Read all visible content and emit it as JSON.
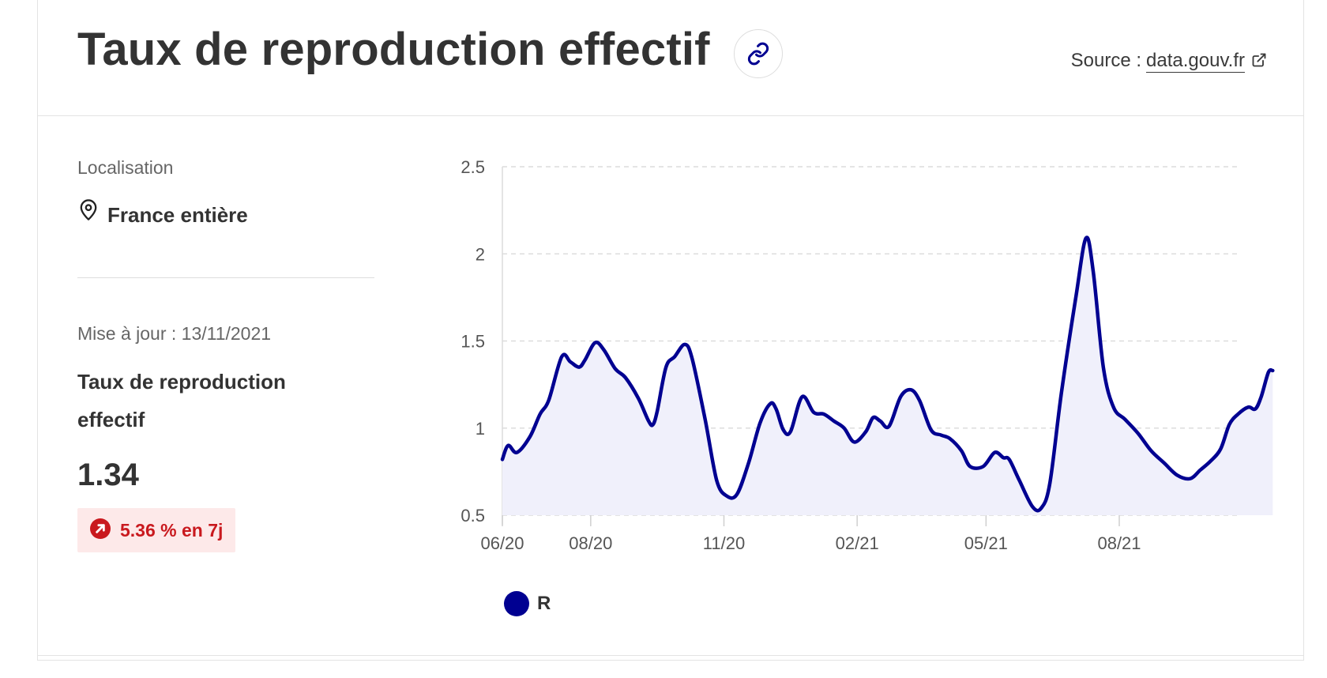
{
  "header": {
    "title": "Taux de reproduction effectif",
    "source_label": "Source :",
    "source_link": "data.gouv.fr"
  },
  "sidebar": {
    "location_label": "Localisation",
    "location_value": "France entière",
    "update_label": "Mise à jour : 13/11/2021",
    "indicator_label": "Taux de reproduction effectif",
    "indicator_value": "1.34",
    "trend_text": "5.36 % en 7j"
  },
  "colors": {
    "series": "#000091",
    "area": "#f0f0fb",
    "trend": "#c9191e",
    "trend_bg": "#fde9e9"
  },
  "icons": {
    "share": "link-icon",
    "external": "external-link-icon",
    "location": "map-pin-icon",
    "trend": "arrow-up-right-icon"
  },
  "chart_data": {
    "type": "area",
    "title": "",
    "xlabel": "",
    "ylabel": "",
    "ylim": [
      0.5,
      2.5
    ],
    "yticks": [
      "0.5",
      "1",
      "1.5",
      "2",
      "2.5"
    ],
    "xticks": [
      {
        "date": "2020-06-01",
        "label": "06/20"
      },
      {
        "date": "2020-08-01",
        "label": "08/20"
      },
      {
        "date": "2020-11-01",
        "label": "11/20"
      },
      {
        "date": "2021-02-01",
        "label": "02/21"
      },
      {
        "date": "2021-05-01",
        "label": "05/21"
      },
      {
        "date": "2021-08-01",
        "label": "08/21"
      }
    ],
    "grid": true,
    "legend": "bottom-left",
    "series": [
      {
        "name": "R",
        "points": [
          [
            "2020-06-01",
            0.82
          ],
          [
            "2020-06-05",
            0.9
          ],
          [
            "2020-06-11",
            0.86
          ],
          [
            "2020-06-20",
            0.95
          ],
          [
            "2020-06-27",
            1.08
          ],
          [
            "2020-07-03",
            1.16
          ],
          [
            "2020-07-12",
            1.41
          ],
          [
            "2020-07-18",
            1.38
          ],
          [
            "2020-07-24",
            1.35
          ],
          [
            "2020-07-28",
            1.39
          ],
          [
            "2020-08-04",
            1.49
          ],
          [
            "2020-08-10",
            1.45
          ],
          [
            "2020-08-18",
            1.34
          ],
          [
            "2020-08-25",
            1.29
          ],
          [
            "2020-09-03",
            1.17
          ],
          [
            "2020-09-10",
            1.04
          ],
          [
            "2020-09-13",
            1.02
          ],
          [
            "2020-09-16",
            1.1
          ],
          [
            "2020-09-22",
            1.35
          ],
          [
            "2020-09-28",
            1.41
          ],
          [
            "2020-10-05",
            1.48
          ],
          [
            "2020-10-10",
            1.4
          ],
          [
            "2020-10-19",
            1.05
          ],
          [
            "2020-10-27",
            0.7
          ],
          [
            "2020-11-03",
            0.61
          ],
          [
            "2020-11-10",
            0.62
          ],
          [
            "2020-11-18",
            0.8
          ],
          [
            "2020-11-26",
            1.03
          ],
          [
            "2020-12-03",
            1.14
          ],
          [
            "2020-12-07",
            1.11
          ],
          [
            "2020-12-12",
            0.99
          ],
          [
            "2020-12-17",
            0.98
          ],
          [
            "2020-12-25",
            1.18
          ],
          [
            "2021-01-02",
            1.09
          ],
          [
            "2021-01-09",
            1.08
          ],
          [
            "2021-01-16",
            1.04
          ],
          [
            "2021-01-23",
            1.0
          ],
          [
            "2021-01-30",
            0.92
          ],
          [
            "2021-02-07",
            0.98
          ],
          [
            "2021-02-12",
            1.06
          ],
          [
            "2021-02-17",
            1.04
          ],
          [
            "2021-02-23",
            1.01
          ],
          [
            "2021-03-03",
            1.18
          ],
          [
            "2021-03-10",
            1.22
          ],
          [
            "2021-03-16",
            1.16
          ],
          [
            "2021-03-24",
            0.99
          ],
          [
            "2021-03-31",
            0.96
          ],
          [
            "2021-04-06",
            0.94
          ],
          [
            "2021-04-14",
            0.87
          ],
          [
            "2021-04-20",
            0.78
          ],
          [
            "2021-04-29",
            0.78
          ],
          [
            "2021-05-07",
            0.86
          ],
          [
            "2021-05-13",
            0.83
          ],
          [
            "2021-05-17",
            0.82
          ],
          [
            "2021-05-24",
            0.7
          ],
          [
            "2021-06-02",
            0.55
          ],
          [
            "2021-06-08",
            0.54
          ],
          [
            "2021-06-14",
            0.68
          ],
          [
            "2021-06-22",
            1.2
          ],
          [
            "2021-07-02",
            1.75
          ],
          [
            "2021-07-09",
            2.09
          ],
          [
            "2021-07-14",
            1.9
          ],
          [
            "2021-07-21",
            1.35
          ],
          [
            "2021-07-28",
            1.12
          ],
          [
            "2021-08-05",
            1.05
          ],
          [
            "2021-08-14",
            0.97
          ],
          [
            "2021-08-23",
            0.87
          ],
          [
            "2021-09-01",
            0.8
          ],
          [
            "2021-09-10",
            0.73
          ],
          [
            "2021-09-19",
            0.71
          ],
          [
            "2021-09-26",
            0.76
          ],
          [
            "2021-10-03",
            0.81
          ],
          [
            "2021-10-10",
            0.88
          ],
          [
            "2021-10-16",
            1.02
          ],
          [
            "2021-10-22",
            1.08
          ],
          [
            "2021-10-29",
            1.12
          ],
          [
            "2021-11-03",
            1.11
          ],
          [
            "2021-11-07",
            1.18
          ],
          [
            "2021-11-12",
            1.32
          ],
          [
            "2021-11-15",
            1.33
          ]
        ]
      }
    ]
  }
}
